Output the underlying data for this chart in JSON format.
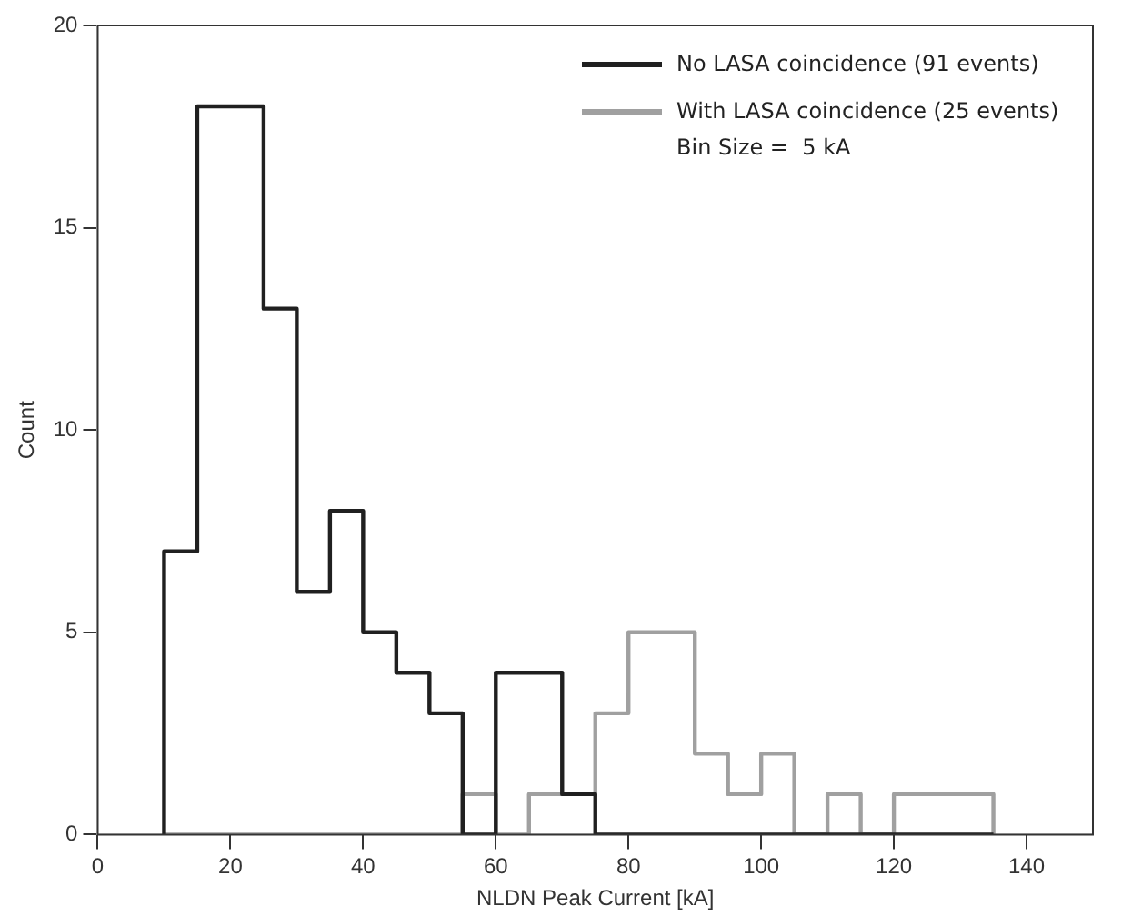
{
  "chart_data": {
    "type": "histogram",
    "xlabel": "NLDN Peak Current [kA]",
    "ylabel": "Count",
    "bins": [
      10,
      15,
      20,
      25,
      30,
      35,
      40,
      45,
      50,
      55,
      60,
      65,
      70,
      75,
      80,
      85,
      90,
      95,
      100,
      105,
      110,
      115,
      120,
      125,
      130,
      135
    ],
    "series": [
      {
        "name": "No LASA coincidence (91 events)",
        "color": "#202020",
        "values": [
          7,
          18,
          18,
          13,
          6,
          8,
          5,
          4,
          3,
          0,
          4,
          4,
          1,
          0,
          0,
          0,
          0,
          0,
          0,
          0,
          0,
          0,
          0,
          0,
          0
        ]
      },
      {
        "name": "With LASA coincidence (25 events)",
        "color": "#a0a0a0",
        "values": [
          0,
          0,
          0,
          0,
          0,
          0,
          0,
          0,
          0,
          1,
          0,
          1,
          1,
          3,
          5,
          5,
          2,
          1,
          2,
          0,
          1,
          0,
          1,
          1,
          1
        ]
      }
    ],
    "xlim": [
      0,
      150
    ],
    "xticks": [
      0,
      20,
      40,
      60,
      80,
      100,
      120,
      140
    ],
    "ylim": [
      0,
      20
    ],
    "yticks": [
      0,
      5,
      10,
      15,
      20
    ],
    "grid": false,
    "legend": "top right",
    "line_style": "solid",
    "marker": "none",
    "annotations": [
      "Bin Size =  5 kA"
    ]
  }
}
